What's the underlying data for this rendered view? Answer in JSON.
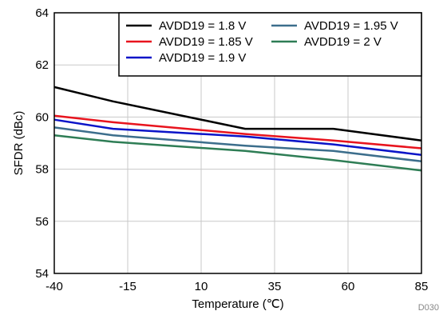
{
  "figure_id": "D030",
  "chart_data": {
    "type": "line",
    "title": "",
    "xlabel": "Temperature (℃)",
    "ylabel": "SFDR (dBc)",
    "xlim": [
      -40,
      85
    ],
    "ylim": [
      54,
      64
    ],
    "xticks": [
      -40,
      -15,
      10,
      35,
      60,
      85
    ],
    "xtick_labels": [
      "-40",
      "-15",
      "10",
      "35",
      "60",
      "85"
    ],
    "yticks": [
      54,
      56,
      58,
      60,
      62,
      64
    ],
    "ytick_labels": [
      "54",
      "56",
      "58",
      "60",
      "62",
      "64"
    ],
    "grid": true,
    "legend_position": "top-right",
    "x": [
      -40,
      -20,
      25,
      55,
      85
    ],
    "series": [
      {
        "name": "AVDD19 = 1.8 V",
        "color": "#000000",
        "values": [
          61.15,
          60.6,
          59.55,
          59.55,
          59.1
        ]
      },
      {
        "name": "AVDD19 = 1.85 V",
        "color": "#e8141e",
        "values": [
          60.05,
          59.8,
          59.35,
          59.1,
          58.8
        ]
      },
      {
        "name": "AVDD19 = 1.9 V",
        "color": "#0a14c8",
        "values": [
          59.9,
          59.55,
          59.25,
          58.95,
          58.55
        ]
      },
      {
        "name": "AVDD19 = 1.95 V",
        "color": "#3c6e8c",
        "values": [
          59.6,
          59.3,
          58.9,
          58.7,
          58.3
        ]
      },
      {
        "name": "AVDD19 = 2 V",
        "color": "#2e7d55",
        "values": [
          59.3,
          59.05,
          58.7,
          58.35,
          57.95
        ]
      }
    ]
  }
}
